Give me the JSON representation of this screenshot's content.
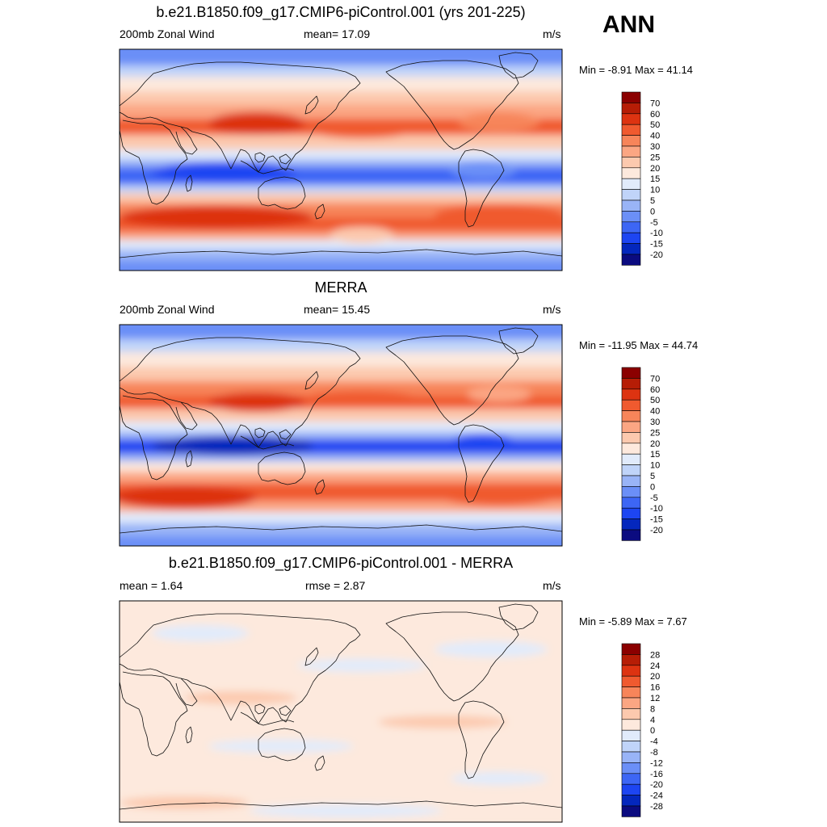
{
  "season": "ANN",
  "colors": {
    "abs_scale": [
      "#0b0b80",
      "#0427bd",
      "#1d45f2",
      "#3d66f5",
      "#6b8ff7",
      "#99b4f7",
      "#c0d4f9",
      "#e1ebfb",
      "#fde9dd",
      "#fcc9ae",
      "#fba683",
      "#f7855a",
      "#f05a2f",
      "#dd3311",
      "#b61d06",
      "#8b0000"
    ],
    "diff_scale": [
      "#0b0b80",
      "#0427bd",
      "#1d45f2",
      "#3d66f5",
      "#6b8ff7",
      "#99b4f7",
      "#c0d4f9",
      "#e1ebfb",
      "#fde9dd",
      "#fcc9ae",
      "#fba683",
      "#f7855a",
      "#f05a2f",
      "#dd3311",
      "#b61d06",
      "#8b0000"
    ]
  },
  "panels": [
    {
      "title": "b.e21.B1850.f09_g17.CMIP6-piControl.001 (yrs 201-225)",
      "left_label": "200mb Zonal Wind",
      "center_label": "mean=  17.09",
      "units": "m/s",
      "minmax": "Min =  -8.91 Max =  41.14",
      "cb_labels": [
        "70",
        "60",
        "50",
        "40",
        "30",
        "25",
        "20",
        "15",
        "10",
        "5",
        "0",
        "-5",
        "-10",
        "-15",
        "-20"
      ]
    },
    {
      "title": "MERRA",
      "left_label": "200mb Zonal Wind",
      "center_label": "mean=  15.45",
      "units": "m/s",
      "minmax": "Min = -11.95 Max =  44.74",
      "cb_labels": [
        "70",
        "60",
        "50",
        "40",
        "30",
        "25",
        "20",
        "15",
        "10",
        "5",
        "0",
        "-5",
        "-10",
        "-15",
        "-20"
      ]
    },
    {
      "title": "b.e21.B1850.f09_g17.CMIP6-piControl.001 - MERRA",
      "left_label": "mean =   1.64",
      "center_label": "rmse =   2.87",
      "units": "m/s",
      "minmax": "Min =  -5.89 Max =   7.67",
      "cb_labels": [
        "28",
        "24",
        "20",
        "16",
        "12",
        "8",
        "4",
        "0",
        "-4",
        "-8",
        "-12",
        "-16",
        "-20",
        "-24",
        "-28"
      ]
    }
  ]
}
